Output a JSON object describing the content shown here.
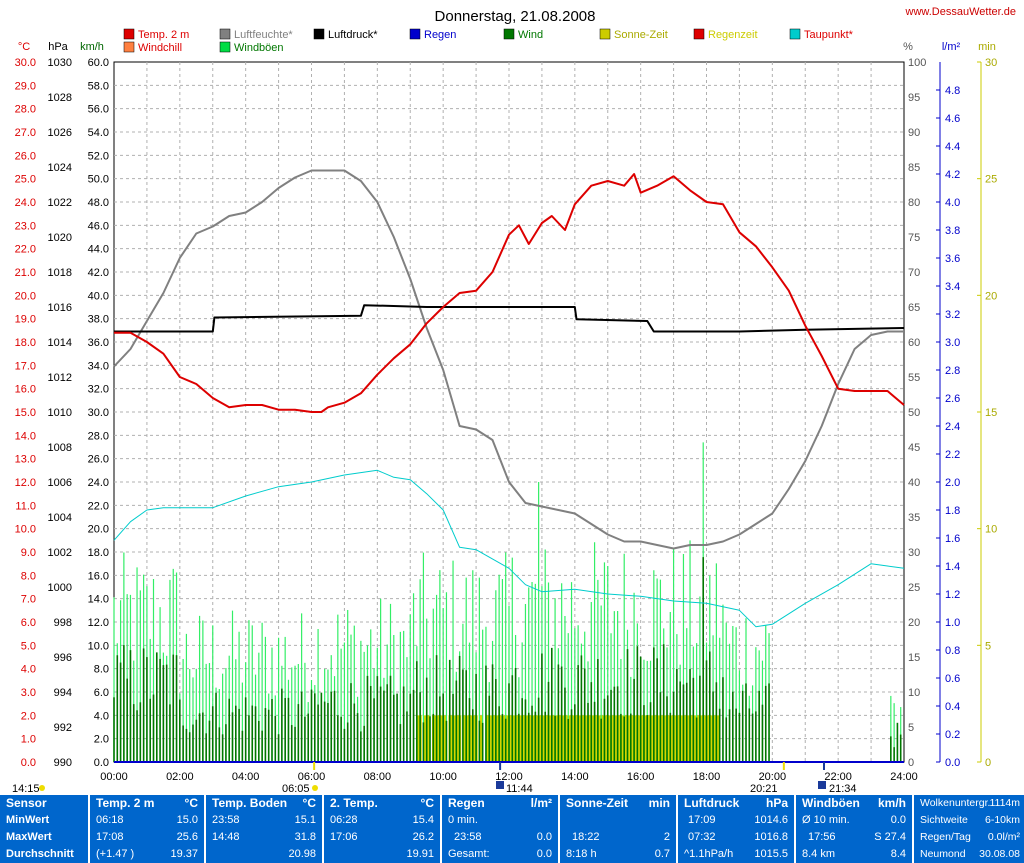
{
  "header": {
    "title": "Donnerstag, 21.08.2008",
    "website": "www.DessauWetter.de"
  },
  "legend": [
    {
      "label": "Temp. 2 m",
      "color": "#dd0000",
      "text_color": "#dd0000"
    },
    {
      "label": "Windchill",
      "color": "#ff8040",
      "text_color": "#dd0000"
    },
    {
      "label": "Luftfeuchte*",
      "color": "#808080",
      "text_color": "#808080"
    },
    {
      "label": "Windböen",
      "color": "#00dd44",
      "text_color": "#007700"
    },
    {
      "label": "Luftdruck*",
      "color": "#000000",
      "text_color": "#000000"
    },
    {
      "label": "Regen",
      "color": "#0000cc",
      "text_color": "#0000cc"
    },
    {
      "label": "Wind",
      "color": "#007700",
      "text_color": "#007700"
    },
    {
      "label": "Sonne-Zeit",
      "color": "#cccc00",
      "text_color": "#aaaa00"
    },
    {
      "label": "Regenzeit",
      "color": "#dd0000",
      "text_color": "#cccc00"
    },
    {
      "label": "Taupunkt*",
      "color": "#00cccc",
      "text_color": "#dd0000"
    }
  ],
  "axes": {
    "temp_unit": "°C",
    "press_unit": "hPa",
    "wind_unit": "km/h",
    "hum_unit": "%",
    "rain_unit": "l/m²",
    "min_unit": "min",
    "temp_ticks": [
      "30.0",
      "29.0",
      "28.0",
      "27.0",
      "26.0",
      "25.0",
      "24.0",
      "23.0",
      "22.0",
      "21.0",
      "20.0",
      "19.0",
      "18.0",
      "17.0",
      "16.0",
      "15.0",
      "14.0",
      "13.0",
      "12.0",
      "11.0",
      "10.0",
      "9.0",
      "8.0",
      "7.0",
      "6.0",
      "5.0",
      "4.0",
      "3.0",
      "2.0",
      "1.0",
      "0.0"
    ],
    "press_ticks": [
      "1030",
      "1028",
      "1026",
      "1024",
      "1022",
      "1020",
      "1018",
      "1016",
      "1014",
      "1012",
      "1010",
      "1008",
      "1006",
      "1004",
      "1002",
      "1000",
      "998",
      "996",
      "994",
      "992",
      "990"
    ],
    "wind_ticks": [
      "60.0",
      "58.0",
      "56.0",
      "54.0",
      "52.0",
      "50.0",
      "48.0",
      "46.0",
      "44.0",
      "42.0",
      "40.0",
      "38.0",
      "36.0",
      "34.0",
      "32.0",
      "30.0",
      "28.0",
      "26.0",
      "24.0",
      "22.0",
      "20.0",
      "18.0",
      "16.0",
      "14.0",
      "12.0",
      "10.0",
      "8.0",
      "6.0",
      "4.0",
      "2.0",
      "0.0"
    ],
    "hum_ticks": [
      "100",
      "95",
      "90",
      "85",
      "80",
      "75",
      "70",
      "65",
      "60",
      "55",
      "50",
      "45",
      "40",
      "35",
      "30",
      "25",
      "20",
      "15",
      "10",
      "5",
      "0"
    ],
    "rain_ticks": [
      "4.8",
      "4.6",
      "4.4",
      "4.2",
      "4.0",
      "3.8",
      "3.6",
      "3.4",
      "3.2",
      "3.0",
      "2.8",
      "2.6",
      "2.4",
      "2.2",
      "2.0",
      "1.8",
      "1.6",
      "1.4",
      "1.2",
      "1.0",
      "0.8",
      "0.6",
      "0.4",
      "0.2",
      "0.0"
    ],
    "min_ticks": [
      "30",
      "25",
      "20",
      "15",
      "10",
      "5",
      "0"
    ],
    "x_ticks": [
      "00:00",
      "02:00",
      "04:00",
      "06:00",
      "08:00",
      "10:00",
      "12:00",
      "14:00",
      "16:00",
      "18:00",
      "20:00",
      "22:00",
      "24:00"
    ]
  },
  "events": {
    "moonset": "14:15",
    "sunrise": "06:05",
    "noon": "11:44",
    "sunset": "20:21",
    "moonrise": "21:34"
  },
  "chart_data": {
    "type": "line",
    "title": "Donnerstag, 21.08.2008",
    "x_range_hours": [
      0,
      24
    ],
    "series": [
      {
        "name": "Temp. 2 m",
        "axis": "°C",
        "ylim": [
          0,
          30
        ],
        "points": [
          [
            0,
            18.4
          ],
          [
            0.5,
            18.4
          ],
          [
            1,
            18.0
          ],
          [
            1.5,
            17.5
          ],
          [
            2,
            16.5
          ],
          [
            2.5,
            16.2
          ],
          [
            3,
            15.6
          ],
          [
            3.5,
            15.2
          ],
          [
            4,
            15.3
          ],
          [
            4.5,
            15.3
          ],
          [
            5,
            15.1
          ],
          [
            5.5,
            15.1
          ],
          [
            6,
            15.0
          ],
          [
            6.3,
            15.0
          ],
          [
            6.5,
            15.2
          ],
          [
            7,
            15.4
          ],
          [
            7.5,
            15.8
          ],
          [
            8,
            16.6
          ],
          [
            8.5,
            17.3
          ],
          [
            9,
            17.9
          ],
          [
            9.5,
            18.8
          ],
          [
            10,
            19.5
          ],
          [
            10.5,
            20.1
          ],
          [
            11,
            20.2
          ],
          [
            11.5,
            21.0
          ],
          [
            12,
            22.6
          ],
          [
            12.3,
            23.0
          ],
          [
            12.6,
            22.2
          ],
          [
            13,
            23.1
          ],
          [
            13.3,
            23.4
          ],
          [
            13.7,
            22.8
          ],
          [
            14,
            23.9
          ],
          [
            14.5,
            24.7
          ],
          [
            15,
            24.9
          ],
          [
            15.5,
            24.7
          ],
          [
            15.8,
            25.2
          ],
          [
            16,
            24.4
          ],
          [
            16.5,
            24.7
          ],
          [
            17,
            25.1
          ],
          [
            17.5,
            24.5
          ],
          [
            18,
            24.0
          ],
          [
            18.5,
            23.9
          ],
          [
            19,
            22.7
          ],
          [
            19.5,
            22.1
          ],
          [
            20,
            21.2
          ],
          [
            20.5,
            20.2
          ],
          [
            21,
            18.7
          ],
          [
            21.5,
            17.4
          ],
          [
            22,
            16.0
          ],
          [
            22.5,
            15.9
          ],
          [
            23,
            15.9
          ],
          [
            23.5,
            15.9
          ],
          [
            24,
            15.3
          ]
        ]
      },
      {
        "name": "Luftfeuchte*",
        "axis": "%",
        "ylim": [
          0,
          100
        ],
        "points": [
          [
            0,
            56.5
          ],
          [
            0.5,
            59
          ],
          [
            1,
            63
          ],
          [
            1.5,
            67
          ],
          [
            2,
            72
          ],
          [
            2.5,
            75.5
          ],
          [
            3,
            76.5
          ],
          [
            3.5,
            78
          ],
          [
            4,
            78.5
          ],
          [
            4.5,
            80
          ],
          [
            5,
            82
          ],
          [
            5.5,
            83.5
          ],
          [
            6,
            84.5
          ],
          [
            6.3,
            84.5
          ],
          [
            7,
            84.5
          ],
          [
            7.5,
            83
          ],
          [
            8,
            80
          ],
          [
            8.5,
            75
          ],
          [
            9,
            69
          ],
          [
            9.5,
            62
          ],
          [
            10,
            56
          ],
          [
            10.5,
            48
          ],
          [
            11,
            47.5
          ],
          [
            11.5,
            46
          ],
          [
            12,
            40
          ],
          [
            12.5,
            37
          ],
          [
            13,
            36.5
          ],
          [
            13.5,
            36
          ],
          [
            14,
            35.5
          ],
          [
            14.5,
            34
          ],
          [
            15,
            32.5
          ],
          [
            15.5,
            31.5
          ],
          [
            16,
            31.5
          ],
          [
            16.5,
            31
          ],
          [
            17,
            30.5
          ],
          [
            17.5,
            31
          ],
          [
            18,
            31
          ],
          [
            18.5,
            31.5
          ],
          [
            19,
            32.5
          ],
          [
            19.5,
            34
          ],
          [
            20,
            35.5
          ],
          [
            20.5,
            39
          ],
          [
            21,
            43
          ],
          [
            21.5,
            48
          ],
          [
            22,
            54
          ],
          [
            22.5,
            59
          ],
          [
            23,
            61
          ],
          [
            23.5,
            61.5
          ],
          [
            24,
            61.5
          ]
        ]
      },
      {
        "name": "Luftdruck*",
        "axis": "hPa",
        "ylim": [
          990,
          1030
        ],
        "points": [
          [
            0,
            1014.6
          ],
          [
            3,
            1014.6
          ],
          [
            3.05,
            1015.4
          ],
          [
            7.5,
            1015.5
          ],
          [
            7.6,
            1016.1
          ],
          [
            9.5,
            1016.0
          ],
          [
            14,
            1016.0
          ],
          [
            14.05,
            1015.3
          ],
          [
            16.2,
            1015.2
          ],
          [
            16.4,
            1014.6
          ],
          [
            19,
            1014.6
          ],
          [
            21,
            1014.7
          ],
          [
            24,
            1014.8
          ]
        ]
      },
      {
        "name": "Taupunkt*",
        "axis": "°C",
        "ylim": [
          0,
          30
        ],
        "points": [
          [
            0,
            9.5
          ],
          [
            0.5,
            10.3
          ],
          [
            1,
            10.8
          ],
          [
            1.5,
            10.9
          ],
          [
            2,
            10.9
          ],
          [
            3,
            10.9
          ],
          [
            4,
            11.4
          ],
          [
            5,
            11.8
          ],
          [
            6,
            12.0
          ],
          [
            7,
            12.3
          ],
          [
            8,
            12.5
          ],
          [
            8.5,
            12.2
          ],
          [
            9,
            12.1
          ],
          [
            9.5,
            11.5
          ],
          [
            10,
            10.8
          ],
          [
            10.5,
            9.2
          ],
          [
            11,
            9.1
          ],
          [
            12,
            8.3
          ],
          [
            12.5,
            7.6
          ],
          [
            13,
            7.3
          ],
          [
            14,
            7.4
          ],
          [
            15,
            7.2
          ],
          [
            16,
            7.1
          ],
          [
            17,
            6.9
          ],
          [
            18,
            6.8
          ],
          [
            19,
            6.5
          ],
          [
            19.5,
            5.8
          ],
          [
            20,
            5.9
          ],
          [
            21,
            6.8
          ],
          [
            22,
            7.6
          ],
          [
            23,
            8.5
          ],
          [
            23.5,
            8.4
          ],
          [
            24,
            8.3
          ]
        ]
      },
      {
        "name": "Wind",
        "axis": "km/h",
        "ylim": [
          0,
          60
        ],
        "avg_value": 8.4,
        "max_value": 17.56
      },
      {
        "name": "Windböen",
        "axis": "km/h",
        "ylim": [
          0,
          60
        ],
        "max_value": 27.4
      },
      {
        "name": "Sonne-Zeit",
        "axis": "min",
        "ylim": [
          0,
          30
        ],
        "intervals": [
          [
            9.2,
            11.2
          ],
          [
            11.3,
            18.4
          ]
        ],
        "value": 2
      },
      {
        "name": "Regen",
        "axis": "l/m²",
        "ylim": [
          0,
          5
        ],
        "total": 0.0
      }
    ]
  },
  "stats": {
    "row_labels": {
      "sensor": "Sensor",
      "min": "MinWert",
      "max": "MaxWert",
      "avg": "Durchschnitt"
    },
    "temp2m": {
      "title": "Temp. 2 m",
      "unit": "°C",
      "min_time": "06:18",
      "min_val": "15.0",
      "max_time": "17:08",
      "max_val": "25.6",
      "avg_note": "(+1.47 )",
      "avg_val": "19.37"
    },
    "boden": {
      "title": "Temp. Boden",
      "unit": "°C",
      "min_time": "23:58",
      "min_val": "15.1",
      "max_time": "14:48",
      "max_val": "31.8",
      "avg_val": "20.98"
    },
    "temp2": {
      "title": "2. Temp.",
      "unit": "°C",
      "min_time": "06:28",
      "min_val": "15.4",
      "max_time": "17:06",
      "max_val": "26.2",
      "avg_val": "19.91"
    },
    "regen": {
      "title": "Regen",
      "unit": "l/m²",
      "row1": "0 min.",
      "row2_time": "23:58",
      "row2_val": "0.0",
      "row3_label": "Gesamt:",
      "row3_val": "0.0"
    },
    "sonne": {
      "title": "Sonne-Zeit",
      "unit": "min",
      "row2_time": "18:22",
      "row2_val": "2",
      "row3_label": "8:18 h",
      "row3_val": "0.7"
    },
    "luftdruck": {
      "title": "Luftdruck",
      "unit": "hPa",
      "min_time": "17:09",
      "min_val": "1014.6",
      "max_time": "07:32",
      "max_val": "1016.8",
      "avg_note": "^1.1hPa/h",
      "avg_val": "1015.5"
    },
    "windboen": {
      "title": "Windböen",
      "unit": "km/h",
      "row1_label": "Ø 10 min.",
      "row1_val": "0.0",
      "row2_time": "17:56",
      "row2_val": "S 27.4",
      "row3_label": "8.4 km",
      "row3_val": "8.4"
    },
    "misc": {
      "wolken_label": "Wolkenuntergr.",
      "wolken_val": "1114m",
      "sicht_label": "Sichtweite",
      "sicht_val": "6-10km",
      "regen_label": "Regen/Tag",
      "regen_val": "0.0l/m²",
      "mond_label": "Neumond",
      "mond_val": "30.08.08"
    }
  }
}
